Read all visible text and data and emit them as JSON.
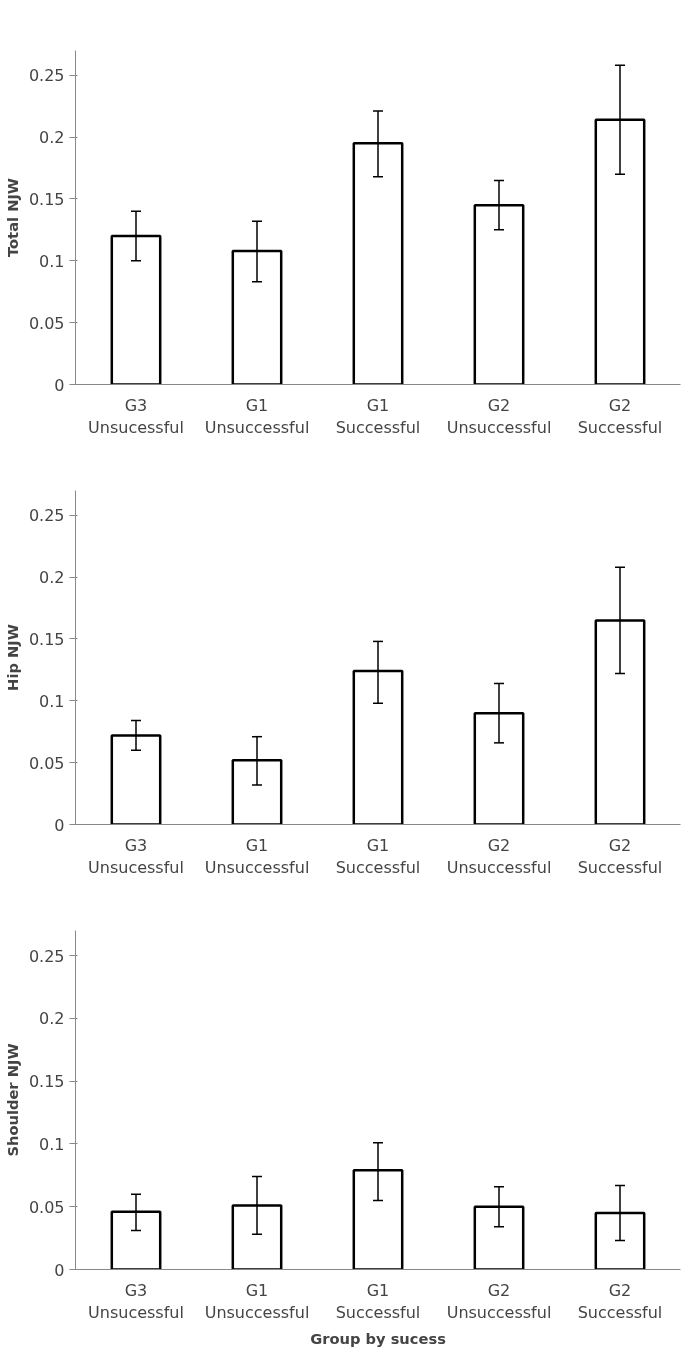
{
  "chart_data": [
    {
      "type": "bar",
      "ylabel": "Total NJW",
      "categories": [
        "G3\nUnsucessful",
        "G1\nUnsuccessful",
        "G1\nSuccessful",
        "G2\nUnsuccessful",
        "G2\nSuccessful"
      ],
      "series": [
        {
          "color": "#ffffff",
          "values": [
            0.12,
            0.108,
            0.195,
            0.145,
            0.214
          ],
          "errors": [
            [
              0.1,
              0.14
            ],
            [
              0.083,
              0.132
            ],
            [
              0.168,
              0.221
            ],
            [
              0.125,
              0.165
            ],
            [
              0.17,
              0.258
            ]
          ]
        }
      ],
      "ylim": [
        0,
        0.27
      ],
      "yticks": [
        0,
        0.05,
        0.1,
        0.15,
        0.2,
        0.25
      ],
      "grid": false
    },
    {
      "type": "bar",
      "ylabel": "Hip NJW",
      "categories": [
        "G3\nUnsucessful",
        "G1\nUnsuccessful",
        "G1\nSuccessful",
        "G2\nUnsuccessful",
        "G2\nSuccessful"
      ],
      "series": [
        {
          "color": "#ffffff",
          "values": [
            0.072,
            0.052,
            0.124,
            0.09,
            0.165
          ],
          "errors": [
            [
              0.06,
              0.084
            ],
            [
              0.032,
              0.071
            ],
            [
              0.098,
              0.148
            ],
            [
              0.066,
              0.114
            ],
            [
              0.122,
              0.208
            ]
          ]
        }
      ],
      "ylim": [
        0,
        0.27
      ],
      "yticks": [
        0,
        0.05,
        0.1,
        0.15,
        0.2,
        0.25
      ],
      "grid": false
    },
    {
      "type": "bar",
      "ylabel": "Shoulder NJW",
      "xlabel": "Group by sucess",
      "categories": [
        "G3\nUnsucessful",
        "G1\nUnsuccessful",
        "G1\nSuccessful",
        "G2\nUnsuccessful",
        "G2\nSuccessful"
      ],
      "series": [
        {
          "color": "#ffffff",
          "values": [
            0.046,
            0.051,
            0.079,
            0.05,
            0.045
          ],
          "errors": [
            [
              0.031,
              0.06
            ],
            [
              0.028,
              0.074
            ],
            [
              0.055,
              0.101
            ],
            [
              0.034,
              0.066
            ],
            [
              0.023,
              0.067
            ]
          ]
        }
      ],
      "ylim": [
        0,
        0.27
      ],
      "yticks": [
        0,
        0.05,
        0.1,
        0.15,
        0.2,
        0.25
      ],
      "grid": false
    }
  ]
}
